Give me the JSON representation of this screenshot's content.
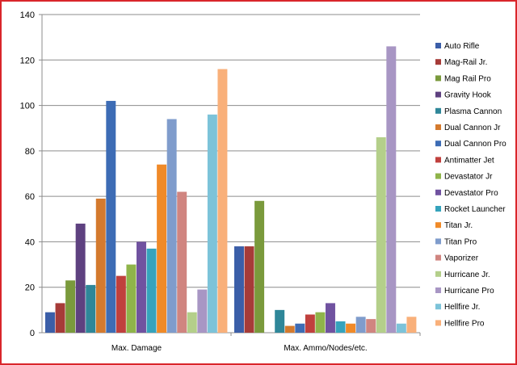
{
  "chart_data": {
    "type": "bar",
    "title": "",
    "xlabel": "",
    "ylabel": "",
    "ylim": [
      0,
      140
    ],
    "yticks": [
      0,
      20,
      40,
      60,
      80,
      100,
      120,
      140
    ],
    "grid": true,
    "legend_position": "right",
    "categories": [
      "Max. Damage",
      "Max. Ammo/Nodes/etc."
    ],
    "series": [
      {
        "name": "Auto Rifle",
        "color": "#3b5ea8",
        "values": [
          9,
          38
        ]
      },
      {
        "name": "Mag-Rail Jr.",
        "color": "#a63b38",
        "values": [
          13,
          38
        ]
      },
      {
        "name": "Mag Rail Pro",
        "color": "#7a9a3c",
        "values": [
          23,
          58
        ]
      },
      {
        "name": "Gravity Hook",
        "color": "#5e4180",
        "values": [
          48,
          0
        ]
      },
      {
        "name": "Plasma Cannon",
        "color": "#2f8799",
        "values": [
          21,
          10
        ]
      },
      {
        "name": "Dual Cannon Jr",
        "color": "#d47a2e",
        "values": [
          59,
          3
        ]
      },
      {
        "name": "Dual Cannon Pro",
        "color": "#3d6cb5",
        "values": [
          102,
          4
        ]
      },
      {
        "name": "Antimatter Jet",
        "color": "#c0403d",
        "values": [
          25,
          8
        ]
      },
      {
        "name": "Devastator Jr",
        "color": "#8fb44a",
        "values": [
          30,
          9
        ]
      },
      {
        "name": "Devastator Pro",
        "color": "#7052a0",
        "values": [
          40,
          13
        ]
      },
      {
        "name": "Rocket Launcher",
        "color": "#35a3bc",
        "values": [
          37,
          5
        ]
      },
      {
        "name": "Titan Jr.",
        "color": "#f08a28",
        "values": [
          74,
          4
        ]
      },
      {
        "name": "Titan Pro",
        "color": "#7f9ccc",
        "values": [
          94,
          7
        ]
      },
      {
        "name": "Vaporizer",
        "color": "#d08580",
        "values": [
          62,
          6
        ]
      },
      {
        "name": "Hurricane Jr.",
        "color": "#b4cf8a",
        "values": [
          9,
          86
        ]
      },
      {
        "name": "Hurricane Pro",
        "color": "#a896c4",
        "values": [
          19,
          126
        ]
      },
      {
        "name": "Hellfire Jr.",
        "color": "#7cc3d9",
        "values": [
          96,
          4
        ]
      },
      {
        "name": "Hellfire Pro",
        "color": "#f9b07a",
        "values": [
          116,
          7
        ]
      }
    ]
  }
}
